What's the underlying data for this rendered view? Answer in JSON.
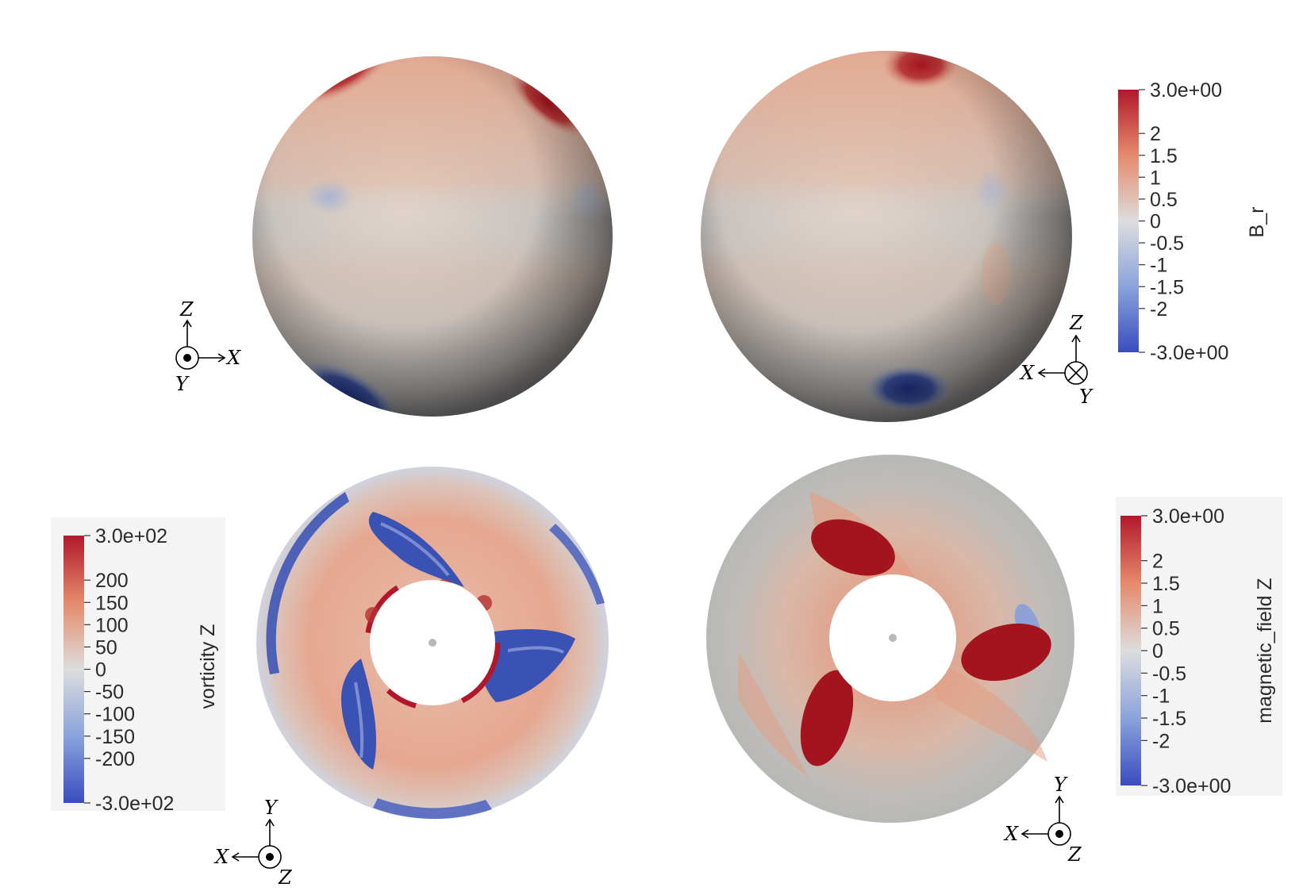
{
  "panels": {
    "sphere_front": {
      "axes": {
        "up": "Z",
        "right": "X",
        "out": "Y",
        "out_symbol": "dot"
      }
    },
    "sphere_back": {
      "axes": {
        "up": "Z",
        "left": "X",
        "in": "Y",
        "in_symbol": "cross"
      }
    },
    "vorticity": {
      "axes": {
        "up": "Y",
        "left": "X",
        "out": "Z",
        "out_symbol": "dot"
      }
    },
    "magnetic": {
      "axes": {
        "up": "Y",
        "left": "X",
        "out": "Z",
        "out_symbol": "dot"
      }
    }
  },
  "colorbars": {
    "br": {
      "title": "B_r",
      "max_label": "3.0e+00",
      "min_label": "-3.0e+00",
      "ticks": [
        "2",
        "1.5",
        "1",
        "0.5",
        "0",
        "-0.5",
        "-1",
        "-1.5",
        "-2"
      ],
      "tick_values": [
        2,
        1.5,
        1,
        0.5,
        0,
        -0.5,
        -1,
        -1.5,
        -2
      ],
      "range": [
        -3,
        3
      ]
    },
    "vort": {
      "title": "vorticity Z",
      "max_label": "3.0e+02",
      "min_label": "-3.0e+02",
      "ticks": [
        "200",
        "150",
        "100",
        "50",
        "0",
        "-50",
        "-100",
        "-150",
        "-200"
      ],
      "tick_values": [
        200,
        150,
        100,
        50,
        0,
        -50,
        -100,
        -150,
        -200
      ],
      "range": [
        -300,
        300
      ]
    },
    "mag": {
      "title": "magnetic_field Z",
      "max_label": "3.0e+00",
      "min_label": "-3.0e+00",
      "ticks": [
        "2",
        "1.5",
        "1",
        "0.5",
        "0",
        "-0.5",
        "-1",
        "-1.5",
        "-2"
      ],
      "tick_values": [
        2,
        1.5,
        1,
        0.5,
        0,
        -0.5,
        -1,
        -1.5,
        -2
      ],
      "range": [
        -3,
        3
      ]
    }
  },
  "colormap": {
    "high": "#b2182b",
    "mid": "#dddddd",
    "low": "#3b4cc0"
  }
}
